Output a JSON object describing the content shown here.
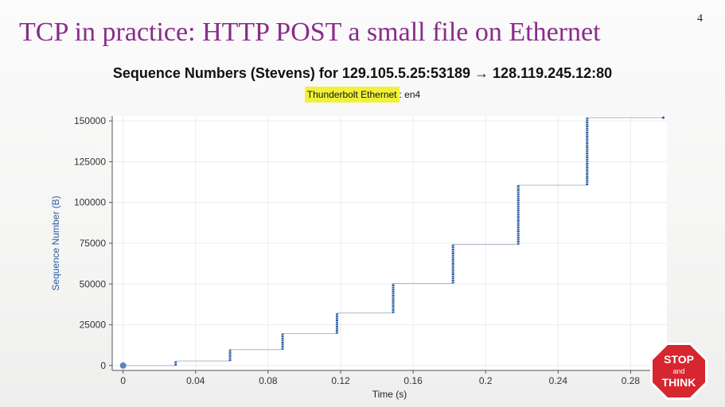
{
  "slide": {
    "title": "TCP in practice: HTTP POST a small file on Ethernet",
    "page_number": "4"
  },
  "graph": {
    "title": "Sequence Numbers (Stevens) for 129.105.5.25:53189 → 128.119.245.12:80",
    "interface_name": "Thunderbolt Ethernet",
    "interface_suffix": ": en4"
  },
  "stop_sign": {
    "line1": "STOP",
    "line2": "and",
    "line3": "THINK",
    "color": "#d6262f"
  },
  "chart_data": {
    "type": "scatter",
    "xlabel": "Time (s)",
    "ylabel": "Sequence Number (B)",
    "xlim": [
      -0.006,
      0.3
    ],
    "ylim": [
      -3000,
      153000
    ],
    "xticks": [
      0,
      0.04,
      0.08,
      0.12,
      0.16,
      0.2,
      0.24,
      0.28
    ],
    "xtick_labels": [
      "0",
      "0.04",
      "0.08",
      "0.12",
      "0.16",
      "0.2",
      "0.24",
      "0.28"
    ],
    "yticks": [
      0,
      25000,
      50000,
      75000,
      100000,
      125000,
      150000
    ],
    "ytick_labels": [
      "0",
      "25000",
      "50000",
      "75000",
      "100000",
      "125000",
      "150000"
    ],
    "grid": true,
    "marker_color": "#2b5ea0",
    "line_color": "#a9b8c8",
    "segments": [
      {
        "t": 0.0,
        "start": 0,
        "end": 0
      },
      {
        "t": 0.029,
        "start": 0,
        "end": 2800
      },
      {
        "t": 0.059,
        "start": 2800,
        "end": 9800
      },
      {
        "t": 0.088,
        "start": 9800,
        "end": 19600
      },
      {
        "t": 0.118,
        "start": 19600,
        "end": 32200
      },
      {
        "t": 0.149,
        "start": 32200,
        "end": 50400
      },
      {
        "t": 0.182,
        "start": 50400,
        "end": 74200
      },
      {
        "t": 0.218,
        "start": 74200,
        "end": 110600
      },
      {
        "t": 0.256,
        "start": 110600,
        "end": 152000
      },
      {
        "t": 0.298,
        "start": 152000,
        "end": 152000
      }
    ]
  }
}
